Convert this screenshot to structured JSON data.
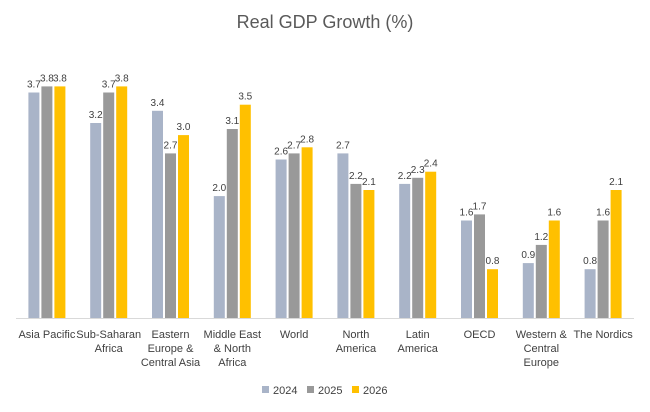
{
  "chart_data": {
    "type": "bar",
    "title": "Real GDP Growth (%)",
    "xlabel": "",
    "ylabel": "",
    "ylim": [
      0,
      4.2
    ],
    "grid": false,
    "legend_position": "bottom",
    "categories": [
      [
        "Asia Pacific"
      ],
      [
        "Sub-Saharan",
        "Africa"
      ],
      [
        "Eastern",
        "Europe &",
        "Central Asia"
      ],
      [
        "Middle East",
        "& North",
        "Africa"
      ],
      [
        "World"
      ],
      [
        "North",
        "America"
      ],
      [
        "Latin",
        "America"
      ],
      [
        "OECD"
      ],
      [
        "Western &",
        "Central",
        "Europe"
      ],
      [
        "The Nordics"
      ]
    ],
    "series": [
      {
        "name": "2024",
        "color": "#A9B4C8",
        "values": [
          3.7,
          3.2,
          3.4,
          2.0,
          2.6,
          2.7,
          2.2,
          1.6,
          0.9,
          0.8
        ],
        "labels": [
          "3.7",
          "3.2",
          "3.4",
          "2.0",
          "2.6",
          "2.7",
          "2.2",
          "1.6",
          "0.9",
          "0.8"
        ]
      },
      {
        "name": "2025",
        "color": "#999999",
        "values": [
          3.8,
          3.7,
          2.7,
          3.1,
          2.7,
          2.2,
          2.3,
          1.7,
          1.2,
          1.6
        ],
        "labels": [
          "3.8",
          "3.7",
          "2.7",
          "3.1",
          "2.7",
          "2.2",
          "2.3",
          "1.7",
          "1.2",
          "1.6"
        ]
      },
      {
        "name": "2026",
        "color": "#FFC000",
        "values": [
          3.8,
          3.8,
          3.0,
          3.5,
          2.8,
          2.1,
          2.4,
          0.8,
          1.6,
          2.1
        ],
        "labels": [
          "3.8",
          "3.8",
          "3.0",
          "3.5",
          "2.8",
          "2.1",
          "2.4",
          "0.8",
          "1.6",
          "2.1"
        ]
      }
    ]
  }
}
